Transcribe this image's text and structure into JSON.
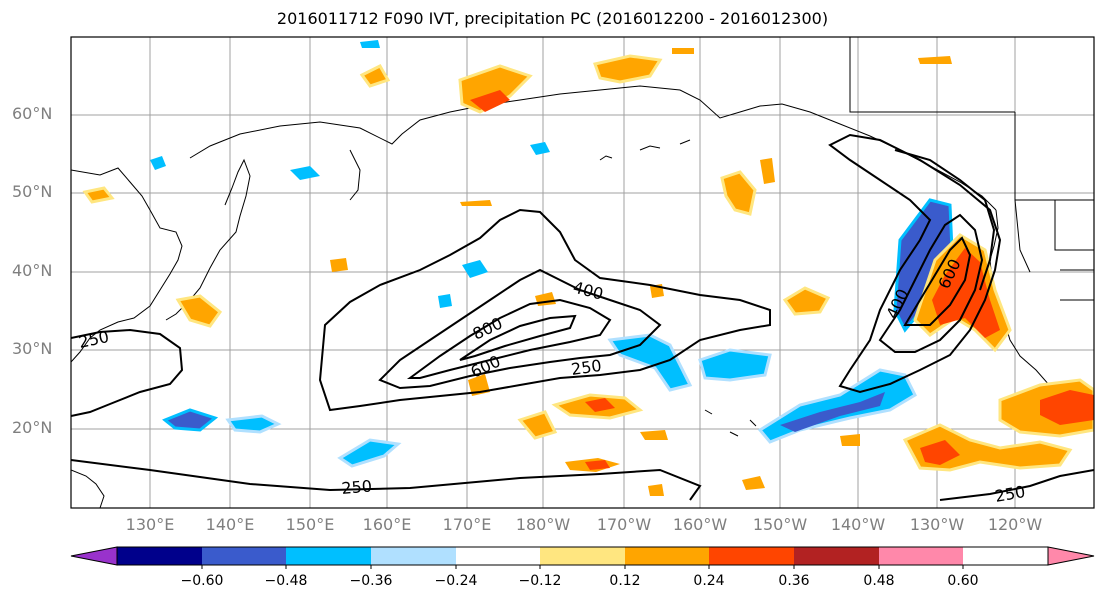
{
  "title": "2016011712 F090 IVT, precipitation PC (2016012200 - 2016012300)",
  "lat_labels": [
    "60°N",
    "50°N",
    "40°N",
    "30°N",
    "20°N"
  ],
  "lon_labels": [
    "130°E",
    "140°E",
    "150°E",
    "160°E",
    "170°E",
    "180°W",
    "170°W",
    "160°W",
    "150°W",
    "140°W",
    "130°W",
    "120°W"
  ],
  "contour_labels": [
    "250",
    "400",
    "800",
    "600",
    "250",
    "250",
    "400",
    "600",
    "250"
  ],
  "colorbar": {
    "ticks": [
      "−0.60",
      "−0.48",
      "−0.36",
      "−0.24",
      "−0.12",
      "0.12",
      "0.24",
      "0.36",
      "0.48",
      "0.60"
    ],
    "colors": [
      "#9932cc",
      "#00008b",
      "#3a5bcc",
      "#00bfff",
      "#b0e0ff",
      "#ffffff",
      "#ffe680",
      "#ffa500",
      "#ff4500",
      "#b22222",
      "#ff88aa"
    ]
  }
}
